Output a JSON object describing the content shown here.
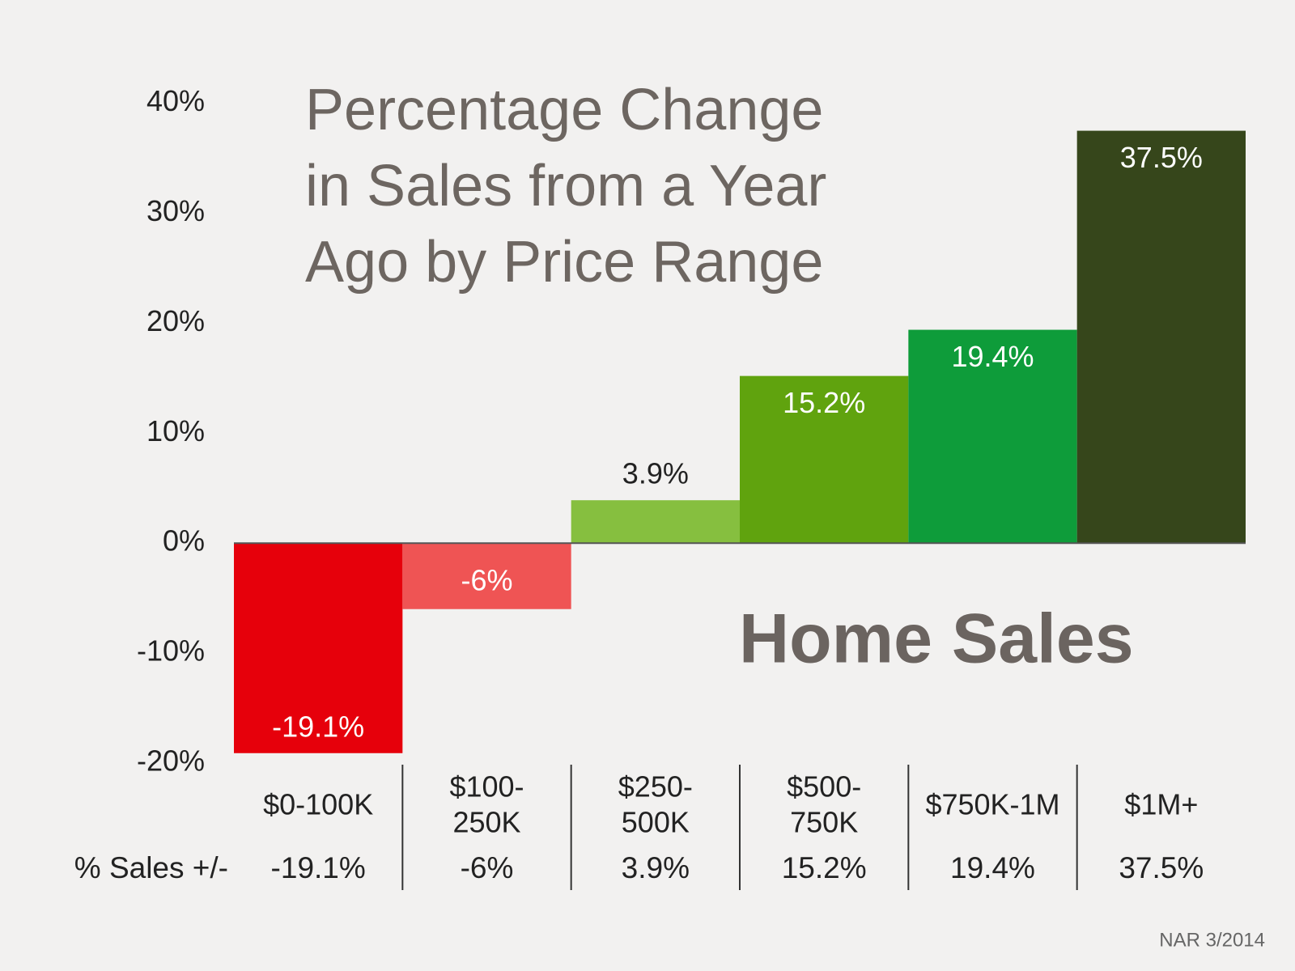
{
  "chart_data": {
    "type": "bar",
    "title": [
      "Percentage Change",
      "in Sales from a Year",
      "Ago by Price Range"
    ],
    "annotation": "Home Sales",
    "row_label": "% Sales +/-",
    "source": "NAR 3/2014",
    "categories": [
      [
        "$0-100K"
      ],
      [
        "$100-",
        "250K"
      ],
      [
        "$250-",
        "500K"
      ],
      [
        "$500-",
        "750K"
      ],
      [
        "$750K-1M"
      ],
      [
        "$1M+"
      ]
    ],
    "values": [
      -19.1,
      -6,
      3.9,
      15.2,
      19.4,
      37.5
    ],
    "value_labels": [
      "-19.1%",
      "-6%",
      "3.9%",
      "15.2%",
      "19.4%",
      "37.5%"
    ],
    "colors": [
      "#e6000b",
      "#ef5454",
      "#86bf3f",
      "#60a30e",
      "#0e9c3a",
      "#36461b"
    ],
    "ylim": [
      -20,
      40
    ],
    "yticks": [
      {
        "value": -20,
        "label": "-20%"
      },
      {
        "value": -10,
        "label": "-10%"
      },
      {
        "value": 0,
        "label": "0%"
      },
      {
        "value": 10,
        "label": "10%"
      },
      {
        "value": 20,
        "label": "20%"
      },
      {
        "value": 30,
        "label": "30%"
      },
      {
        "value": 40,
        "label": "40%"
      }
    ]
  }
}
